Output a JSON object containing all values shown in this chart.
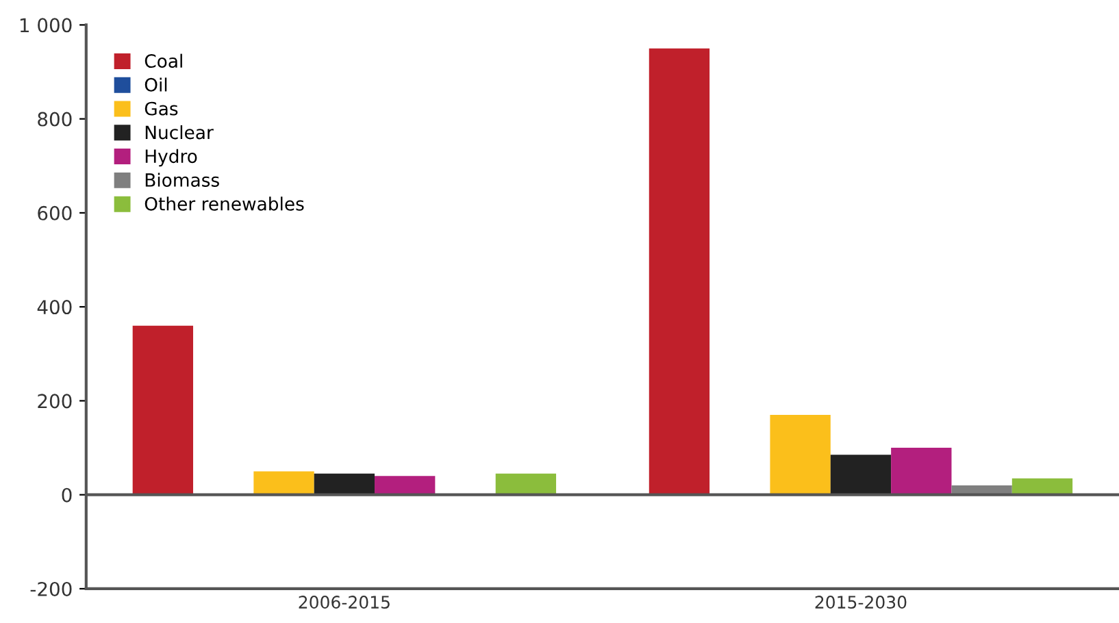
{
  "chart_data": {
    "type": "bar",
    "categories": [
      "2006-2015",
      "2015-2030"
    ],
    "series": [
      {
        "name": "Coal",
        "color": "#c0202b",
        "values": [
          360,
          950
        ]
      },
      {
        "name": "Oil",
        "color": "#1f4e9c",
        "values": [
          0,
          0
        ]
      },
      {
        "name": "Gas",
        "color": "#fbbf1b",
        "values": [
          50,
          170
        ]
      },
      {
        "name": "Nuclear",
        "color": "#222222",
        "values": [
          45,
          85
        ]
      },
      {
        "name": "Hydro",
        "color": "#b31f7e",
        "values": [
          40,
          100
        ]
      },
      {
        "name": "Biomass",
        "color": "#7f7f7f",
        "values": [
          0,
          20
        ]
      },
      {
        "name": "Other renewables",
        "color": "#8bbd3c",
        "values": [
          45,
          35
        ]
      }
    ],
    "ylim": [
      -200,
      1000
    ],
    "yticks": [
      -200,
      0,
      200,
      400,
      600,
      {
        "value": 800,
        "label": "800"
      },
      {
        "value": 1000,
        "label": "1 000"
      }
    ],
    "ref_lines": [
      {
        "axis": "y",
        "value": 0,
        "color": "#555555"
      }
    ],
    "grid": false,
    "legend": "top left"
  }
}
